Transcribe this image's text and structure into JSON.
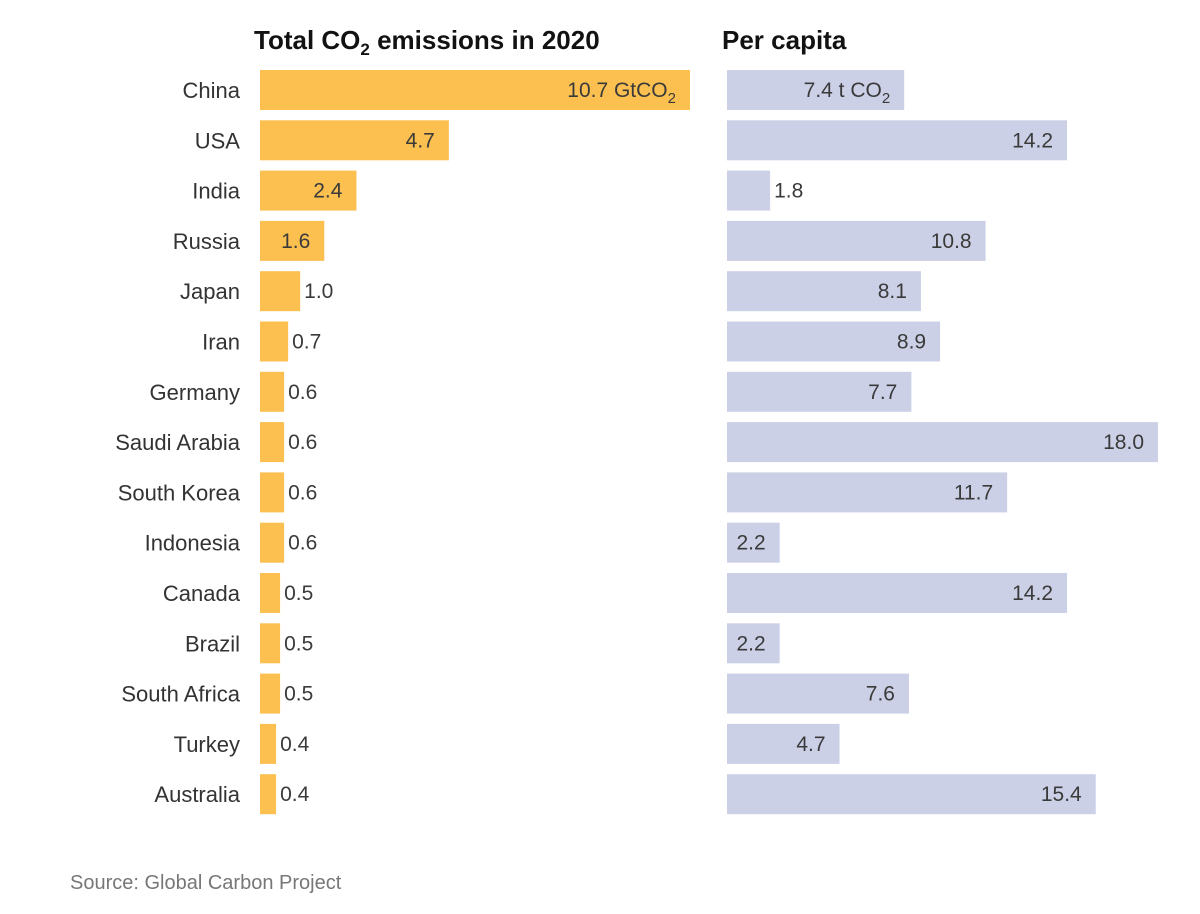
{
  "chart_data": [
    {
      "type": "bar",
      "orientation": "horizontal",
      "title_main": "Total CO",
      "title_sub": "2",
      "title_rest": " emissions in 2020",
      "categories": [
        "China",
        "USA",
        "India",
        "Russia",
        "Japan",
        "Iran",
        "Germany",
        "Saudi Arabia",
        "South Korea",
        "Indonesia",
        "Canada",
        "Brazil",
        "South Africa",
        "Turkey",
        "Australia"
      ],
      "values": [
        10.7,
        4.7,
        2.4,
        1.6,
        1.0,
        0.7,
        0.6,
        0.6,
        0.6,
        0.6,
        0.5,
        0.5,
        0.5,
        0.4,
        0.4
      ],
      "value_labels": [
        "10.7",
        "4.7",
        "2.4",
        "1.6",
        "1.0",
        "0.7",
        "0.6",
        "0.6",
        "0.6",
        "0.6",
        "0.5",
        "0.5",
        "0.5",
        "0.4",
        "0.4"
      ],
      "first_unit_main": "GtCO",
      "first_unit_sub": "2",
      "color": "#fbc050",
      "xlim": [
        0,
        10.7
      ]
    },
    {
      "type": "bar",
      "orientation": "horizontal",
      "title": "Per capita",
      "categories": [
        "China",
        "USA",
        "India",
        "Russia",
        "Japan",
        "Iran",
        "Germany",
        "Saudi Arabia",
        "South Korea",
        "Indonesia",
        "Canada",
        "Brazil",
        "South Africa",
        "Turkey",
        "Australia"
      ],
      "values": [
        7.4,
        14.2,
        1.8,
        10.8,
        8.1,
        8.9,
        7.7,
        18.0,
        11.7,
        2.2,
        14.2,
        2.2,
        7.6,
        4.7,
        15.4
      ],
      "value_labels": [
        "7.4",
        "14.2",
        "1.8",
        "10.8",
        "8.1",
        "8.9",
        "7.7",
        "18.0",
        "11.7",
        "2.2",
        "14.2",
        "2.2",
        "7.6",
        "4.7",
        "15.4"
      ],
      "first_unit_main": "t CO",
      "first_unit_sub": "2",
      "color": "#ccd0e6",
      "xlim": [
        0,
        18.0
      ]
    }
  ],
  "source": "Source: Global Carbon Project"
}
